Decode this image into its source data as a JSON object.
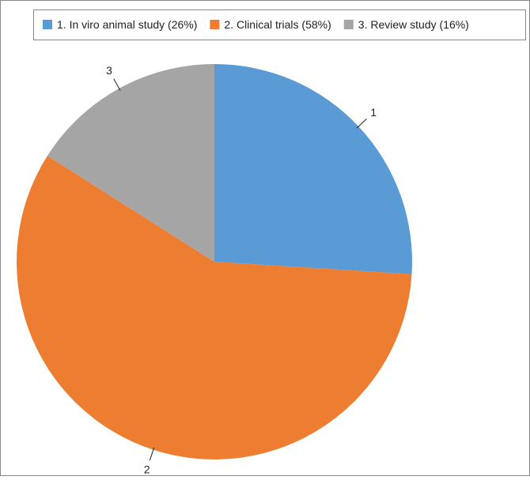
{
  "chart_data": {
    "type": "pie",
    "categories": [
      "1. In viro animal study (26%)",
      "2. Clinical trials (58%)",
      "3. Review study (16%)"
    ],
    "values": [
      26,
      58,
      16
    ],
    "slice_labels": [
      "1",
      "2",
      "3"
    ],
    "colors": [
      "#5b9bd5",
      "#ed7d31",
      "#a5a5a5"
    ],
    "legend": "top"
  }
}
